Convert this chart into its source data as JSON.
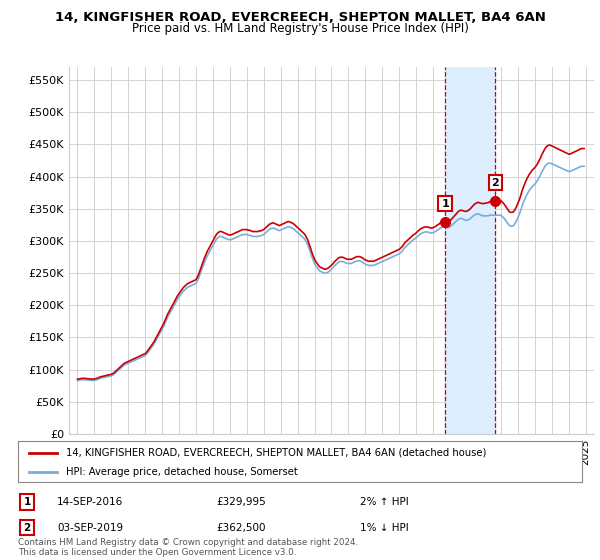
{
  "title": "14, KINGFISHER ROAD, EVERCREECH, SHEPTON MALLET, BA4 6AN",
  "subtitle": "Price paid vs. HM Land Registry's House Price Index (HPI)",
  "legend_house": "14, KINGFISHER ROAD, EVERCREECH, SHEPTON MALLET, BA4 6AN (detached house)",
  "legend_hpi": "HPI: Average price, detached house, Somerset",
  "annotation1_label": "1",
  "annotation1_date": "14-SEP-2016",
  "annotation1_price": "£329,995",
  "annotation1_hpi": "2% ↑ HPI",
  "annotation2_label": "2",
  "annotation2_date": "03-SEP-2019",
  "annotation2_price": "£362,500",
  "annotation2_hpi": "1% ↓ HPI",
  "footer": "Contains HM Land Registry data © Crown copyright and database right 2024.\nThis data is licensed under the Open Government Licence v3.0.",
  "sale1_x": 2016.71,
  "sale1_y": 329995,
  "sale2_x": 2019.67,
  "sale2_y": 362500,
  "ylim_min": 0,
  "ylim_max": 570000,
  "xlim_min": 1994.5,
  "xlim_max": 2025.5,
  "hpi_color": "#7aaddc",
  "house_color": "#cc0000",
  "sale_marker_color": "#cc0000",
  "annotation_box_color": "#cc0000",
  "shaded_region_color": "#ddeeff",
  "grid_color": "#cccccc",
  "bg_color": "#ffffff",
  "yticks": [
    0,
    50000,
    100000,
    150000,
    200000,
    250000,
    300000,
    350000,
    400000,
    450000,
    500000,
    550000
  ],
  "ytick_labels": [
    "£0",
    "£50K",
    "£100K",
    "£150K",
    "£200K",
    "£250K",
    "£300K",
    "£350K",
    "£400K",
    "£450K",
    "£500K",
    "£550K"
  ],
  "xticks": [
    1995,
    1996,
    1997,
    1998,
    1999,
    2000,
    2001,
    2002,
    2003,
    2004,
    2005,
    2006,
    2007,
    2008,
    2009,
    2010,
    2011,
    2012,
    2013,
    2014,
    2015,
    2016,
    2017,
    2018,
    2019,
    2020,
    2021,
    2022,
    2023,
    2024,
    2025
  ],
  "hpi_t": [
    1995.0,
    1995.083,
    1995.167,
    1995.25,
    1995.333,
    1995.417,
    1995.5,
    1995.583,
    1995.667,
    1995.75,
    1995.833,
    1995.917,
    1996.0,
    1996.083,
    1996.167,
    1996.25,
    1996.333,
    1996.417,
    1996.5,
    1996.583,
    1996.667,
    1996.75,
    1996.833,
    1996.917,
    1997.0,
    1997.083,
    1997.167,
    1997.25,
    1997.333,
    1997.417,
    1997.5,
    1997.583,
    1997.667,
    1997.75,
    1997.833,
    1997.917,
    1998.0,
    1998.083,
    1998.167,
    1998.25,
    1998.333,
    1998.417,
    1998.5,
    1998.583,
    1998.667,
    1998.75,
    1998.833,
    1998.917,
    1999.0,
    1999.083,
    1999.167,
    1999.25,
    1999.333,
    1999.417,
    1999.5,
    1999.583,
    1999.667,
    1999.75,
    1999.833,
    1999.917,
    2000.0,
    2000.083,
    2000.167,
    2000.25,
    2000.333,
    2000.417,
    2000.5,
    2000.583,
    2000.667,
    2000.75,
    2000.833,
    2000.917,
    2001.0,
    2001.083,
    2001.167,
    2001.25,
    2001.333,
    2001.417,
    2001.5,
    2001.583,
    2001.667,
    2001.75,
    2001.833,
    2001.917,
    2002.0,
    2002.083,
    2002.167,
    2002.25,
    2002.333,
    2002.417,
    2002.5,
    2002.583,
    2002.667,
    2002.75,
    2002.833,
    2002.917,
    2003.0,
    2003.083,
    2003.167,
    2003.25,
    2003.333,
    2003.417,
    2003.5,
    2003.583,
    2003.667,
    2003.75,
    2003.833,
    2003.917,
    2004.0,
    2004.083,
    2004.167,
    2004.25,
    2004.333,
    2004.417,
    2004.5,
    2004.583,
    2004.667,
    2004.75,
    2004.833,
    2004.917,
    2005.0,
    2005.083,
    2005.167,
    2005.25,
    2005.333,
    2005.417,
    2005.5,
    2005.583,
    2005.667,
    2005.75,
    2005.833,
    2005.917,
    2006.0,
    2006.083,
    2006.167,
    2006.25,
    2006.333,
    2006.417,
    2006.5,
    2006.583,
    2006.667,
    2006.75,
    2006.833,
    2006.917,
    2007.0,
    2007.083,
    2007.167,
    2007.25,
    2007.333,
    2007.417,
    2007.5,
    2007.583,
    2007.667,
    2007.75,
    2007.833,
    2007.917,
    2008.0,
    2008.083,
    2008.167,
    2008.25,
    2008.333,
    2008.417,
    2008.5,
    2008.583,
    2008.667,
    2008.75,
    2008.833,
    2008.917,
    2009.0,
    2009.083,
    2009.167,
    2009.25,
    2009.333,
    2009.417,
    2009.5,
    2009.583,
    2009.667,
    2009.75,
    2009.833,
    2009.917,
    2010.0,
    2010.083,
    2010.167,
    2010.25,
    2010.333,
    2010.417,
    2010.5,
    2010.583,
    2010.667,
    2010.75,
    2010.833,
    2010.917,
    2011.0,
    2011.083,
    2011.167,
    2011.25,
    2011.333,
    2011.417,
    2011.5,
    2011.583,
    2011.667,
    2011.75,
    2011.833,
    2011.917,
    2012.0,
    2012.083,
    2012.167,
    2012.25,
    2012.333,
    2012.417,
    2012.5,
    2012.583,
    2012.667,
    2012.75,
    2012.833,
    2012.917,
    2013.0,
    2013.083,
    2013.167,
    2013.25,
    2013.333,
    2013.417,
    2013.5,
    2013.583,
    2013.667,
    2013.75,
    2013.833,
    2013.917,
    2014.0,
    2014.083,
    2014.167,
    2014.25,
    2014.333,
    2014.417,
    2014.5,
    2014.583,
    2014.667,
    2014.75,
    2014.833,
    2014.917,
    2015.0,
    2015.083,
    2015.167,
    2015.25,
    2015.333,
    2015.417,
    2015.5,
    2015.583,
    2015.667,
    2015.75,
    2015.833,
    2015.917,
    2016.0,
    2016.083,
    2016.167,
    2016.25,
    2016.333,
    2016.417,
    2016.5,
    2016.583,
    2016.667,
    2016.75,
    2016.833,
    2016.917,
    2017.0,
    2017.083,
    2017.167,
    2017.25,
    2017.333,
    2017.417,
    2017.5,
    2017.583,
    2017.667,
    2017.75,
    2017.833,
    2017.917,
    2018.0,
    2018.083,
    2018.167,
    2018.25,
    2018.333,
    2018.417,
    2018.5,
    2018.583,
    2018.667,
    2018.75,
    2018.833,
    2018.917,
    2019.0,
    2019.083,
    2019.167,
    2019.25,
    2019.333,
    2019.417,
    2019.5,
    2019.583,
    2019.667,
    2019.75,
    2019.833,
    2019.917,
    2020.0,
    2020.083,
    2020.167,
    2020.25,
    2020.333,
    2020.417,
    2020.5,
    2020.583,
    2020.667,
    2020.75,
    2020.833,
    2020.917,
    2021.0,
    2021.083,
    2021.167,
    2021.25,
    2021.333,
    2021.417,
    2021.5,
    2021.583,
    2021.667,
    2021.75,
    2021.833,
    2021.917,
    2022.0,
    2022.083,
    2022.167,
    2022.25,
    2022.333,
    2022.417,
    2022.5,
    2022.583,
    2022.667,
    2022.75,
    2022.833,
    2022.917,
    2023.0,
    2023.083,
    2023.167,
    2023.25,
    2023.333,
    2023.417,
    2023.5,
    2023.583,
    2023.667,
    2023.75,
    2023.833,
    2023.917,
    2024.0,
    2024.083,
    2024.167,
    2024.25,
    2024.333,
    2024.417,
    2024.5,
    2024.583,
    2024.667,
    2024.75,
    2024.833,
    2024.917
  ],
  "hpi_v": [
    83000,
    83500,
    84000,
    84200,
    84500,
    84300,
    84100,
    83900,
    83700,
    83500,
    83300,
    83100,
    83500,
    84000,
    84500,
    85500,
    86500,
    87000,
    87500,
    88000,
    88500,
    89000,
    89500,
    90000,
    90500,
    91500,
    93000,
    95000,
    97000,
    99000,
    101000,
    103000,
    105000,
    107000,
    108000,
    109000,
    110000,
    111000,
    112000,
    113000,
    114000,
    115000,
    116000,
    117000,
    118000,
    119000,
    120000,
    121000,
    122000,
    124000,
    127000,
    130000,
    133000,
    136000,
    139000,
    143000,
    147000,
    151000,
    155000,
    159000,
    163000,
    167000,
    172000,
    177000,
    182000,
    186000,
    190000,
    194000,
    198000,
    202000,
    206000,
    210000,
    213000,
    216000,
    219000,
    222000,
    224000,
    226000,
    228000,
    229000,
    230000,
    231000,
    232000,
    233000,
    234000,
    238000,
    243000,
    249000,
    255000,
    261000,
    267000,
    272000,
    277000,
    281000,
    285000,
    289000,
    293000,
    297000,
    301000,
    304000,
    306000,
    307000,
    307000,
    306000,
    305000,
    304000,
    303000,
    302000,
    302000,
    302000,
    303000,
    304000,
    305000,
    306000,
    307000,
    308000,
    309000,
    310000,
    310000,
    310000,
    310000,
    309000,
    309000,
    308000,
    307000,
    307000,
    307000,
    307000,
    307000,
    308000,
    308000,
    309000,
    310000,
    312000,
    314000,
    316000,
    318000,
    319000,
    320000,
    320000,
    319000,
    318000,
    317000,
    316000,
    317000,
    318000,
    319000,
    320000,
    321000,
    322000,
    322000,
    321000,
    320000,
    319000,
    317000,
    315000,
    313000,
    311000,
    309000,
    307000,
    305000,
    303000,
    299000,
    295000,
    289000,
    283000,
    276000,
    270000,
    265000,
    261000,
    258000,
    255000,
    253000,
    252000,
    251000,
    250000,
    250000,
    251000,
    252000,
    254000,
    256000,
    258000,
    261000,
    263000,
    265000,
    267000,
    268000,
    268000,
    268000,
    267000,
    266000,
    265000,
    265000,
    265000,
    265000,
    266000,
    267000,
    268000,
    269000,
    269000,
    269000,
    268000,
    267000,
    265000,
    264000,
    263000,
    262000,
    262000,
    262000,
    262000,
    262000,
    263000,
    264000,
    265000,
    266000,
    267000,
    268000,
    269000,
    270000,
    271000,
    272000,
    273000,
    274000,
    275000,
    276000,
    277000,
    278000,
    279000,
    280000,
    282000,
    284000,
    287000,
    290000,
    292000,
    294000,
    296000,
    298000,
    300000,
    302000,
    303000,
    305000,
    307000,
    309000,
    311000,
    312000,
    313000,
    314000,
    314000,
    314000,
    313000,
    313000,
    312000,
    313000,
    314000,
    315000,
    317000,
    318000,
    320000,
    321000,
    322000,
    322000,
    322000,
    321000,
    321000,
    322000,
    324000,
    326000,
    328000,
    330000,
    332000,
    334000,
    335000,
    335000,
    334000,
    333000,
    332000,
    332000,
    333000,
    334000,
    336000,
    338000,
    340000,
    341000,
    342000,
    342000,
    341000,
    340000,
    339000,
    339000,
    339000,
    339000,
    339000,
    340000,
    340000,
    340000,
    340000,
    340000,
    340000,
    340000,
    340000,
    340000,
    338000,
    336000,
    333000,
    330000,
    327000,
    324000,
    323000,
    323000,
    324000,
    327000,
    331000,
    336000,
    341000,
    347000,
    354000,
    360000,
    365000,
    370000,
    374000,
    378000,
    381000,
    384000,
    386000,
    388000,
    391000,
    394000,
    398000,
    402000,
    407000,
    411000,
    415000,
    418000,
    420000,
    421000,
    421000,
    420000,
    419000,
    418000,
    417000,
    416000,
    415000,
    414000,
    413000,
    412000,
    411000,
    410000,
    409000,
    408000,
    408000,
    409000,
    410000,
    411000,
    412000,
    413000,
    414000,
    415000,
    416000,
    416000,
    416000
  ]
}
